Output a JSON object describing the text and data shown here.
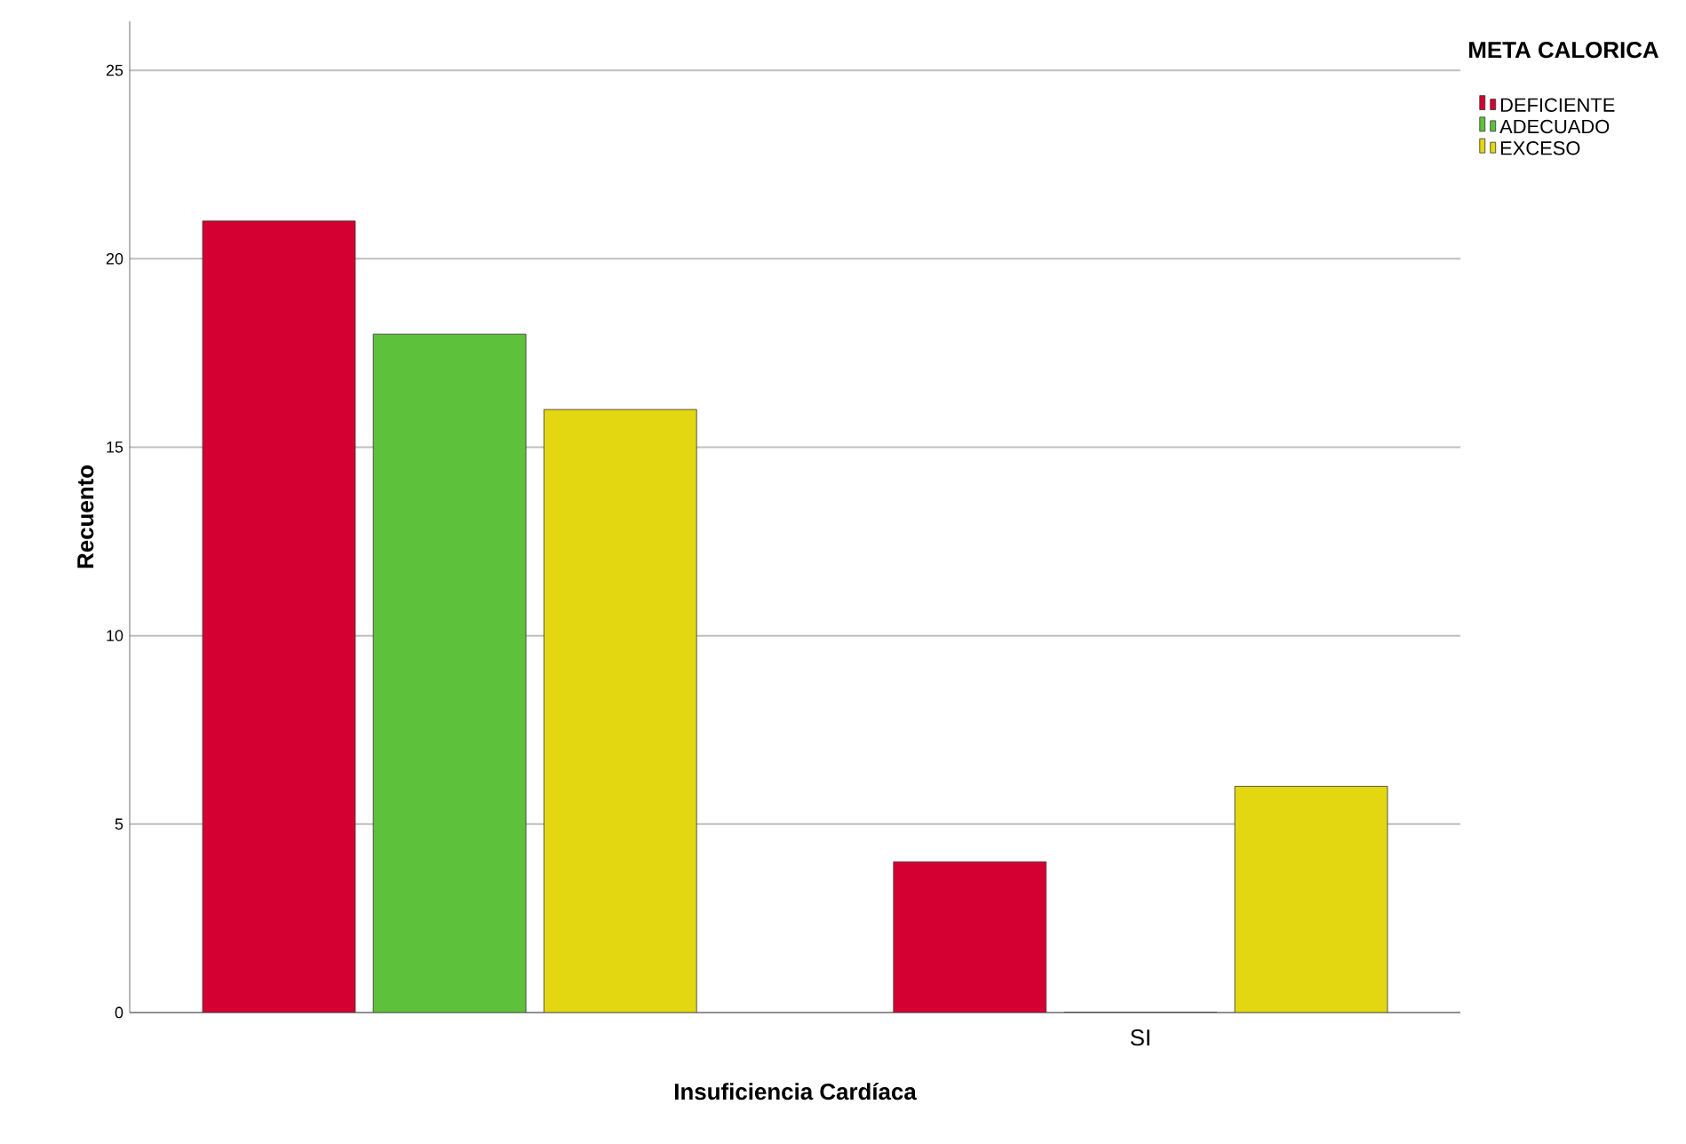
{
  "chart_data": {
    "type": "bar",
    "xlabel": "Insuficiencia Cardíaca",
    "ylabel": "Recuento",
    "legend_title": "META CALORICA",
    "categories": [
      null,
      "SI"
    ],
    "series": [
      {
        "name": "DEFICIENTE",
        "color": "#d50032",
        "values": [
          21,
          4
        ]
      },
      {
        "name": "ADECUADO",
        "color": "#5ec13b",
        "values": [
          18,
          0
        ]
      },
      {
        "name": "EXCESO",
        "color": "#e3d712",
        "values": [
          16,
          6
        ]
      }
    ],
    "ylim": [
      0,
      26.3
    ],
    "yticks": [
      0,
      5,
      10,
      15,
      20,
      25
    ],
    "grid": "y",
    "legend": "top right"
  }
}
